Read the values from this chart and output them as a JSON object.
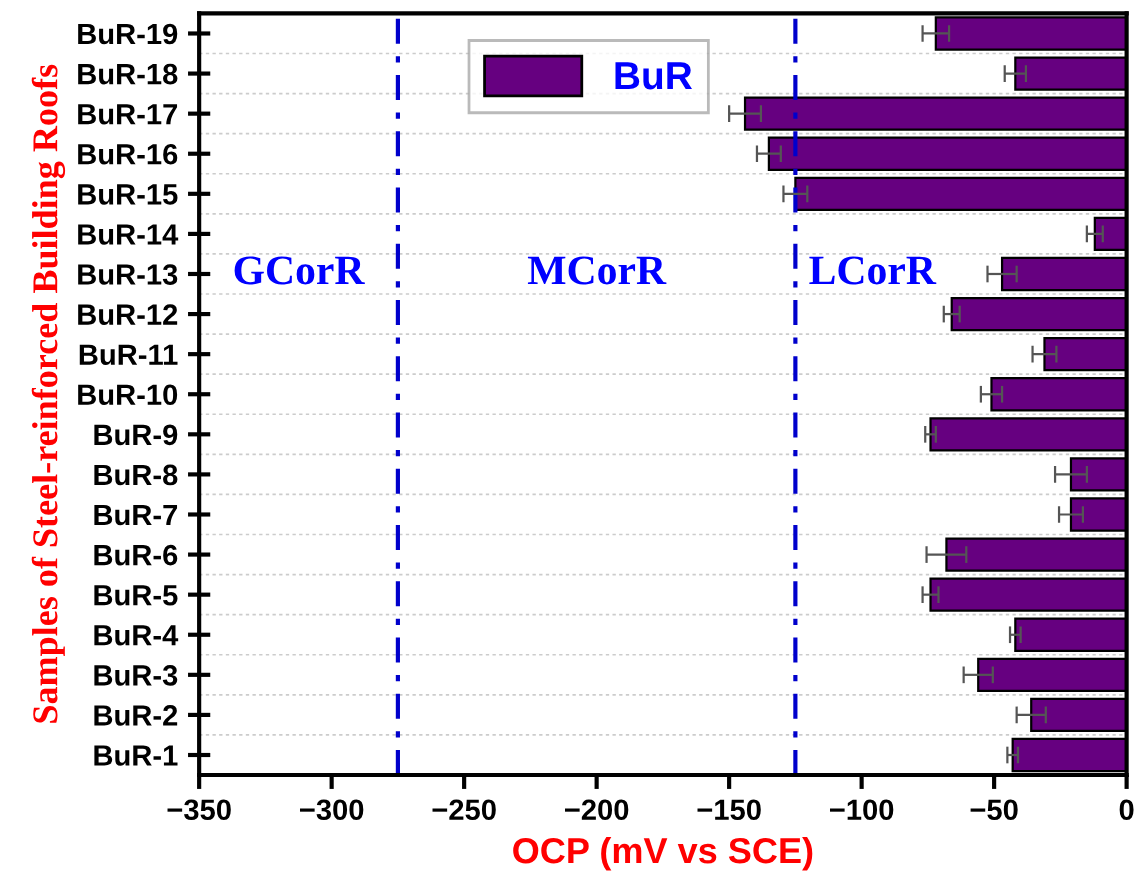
{
  "chart_data": {
    "type": "bar",
    "orientation": "horizontal",
    "xlabel": "OCP (mV vs SCE)",
    "ylabel": "Samples of Steel-reinforced Building Roofs",
    "categories": [
      "BuR-19",
      "BuR-18",
      "BuR-17",
      "BuR-16",
      "BuR-15",
      "BuR-14",
      "BuR-13",
      "BuR-12",
      "BuR-11",
      "BuR-10",
      "BuR-9",
      "BuR-8",
      "BuR-7",
      "BuR-6",
      "BuR-5",
      "BuR-4",
      "BuR-3",
      "BuR-2",
      "BuR-1"
    ],
    "series": [
      {
        "name": "BuR",
        "color": "#660080",
        "values": [
          -72,
          -42,
          -144,
          -135,
          -125,
          -12,
          -47,
          -66,
          -31,
          -51,
          -74,
          -21,
          -21,
          -68,
          -74,
          -42,
          -56,
          -36,
          -43
        ],
        "errors": [
          5,
          4,
          6,
          4.5,
          4.5,
          3,
          5.5,
          3,
          4.5,
          4,
          2,
          6,
          4.5,
          7.5,
          3,
          2,
          5.5,
          5.5,
          2
        ]
      }
    ],
    "xlim": [
      -350,
      0
    ],
    "xticks": [
      -350,
      -300,
      -250,
      -200,
      -150,
      -100,
      -50,
      0
    ],
    "ref_lines": [
      {
        "axis": "x",
        "value": -275,
        "color": "#0000cc",
        "line_style": "dashdot"
      },
      {
        "axis": "x",
        "value": -125,
        "color": "#0000cc",
        "line_style": "dashdot"
      }
    ],
    "annotations": [
      "GCorR",
      "MCorR",
      "LCorR"
    ],
    "grid": "y",
    "legend": "top"
  }
}
